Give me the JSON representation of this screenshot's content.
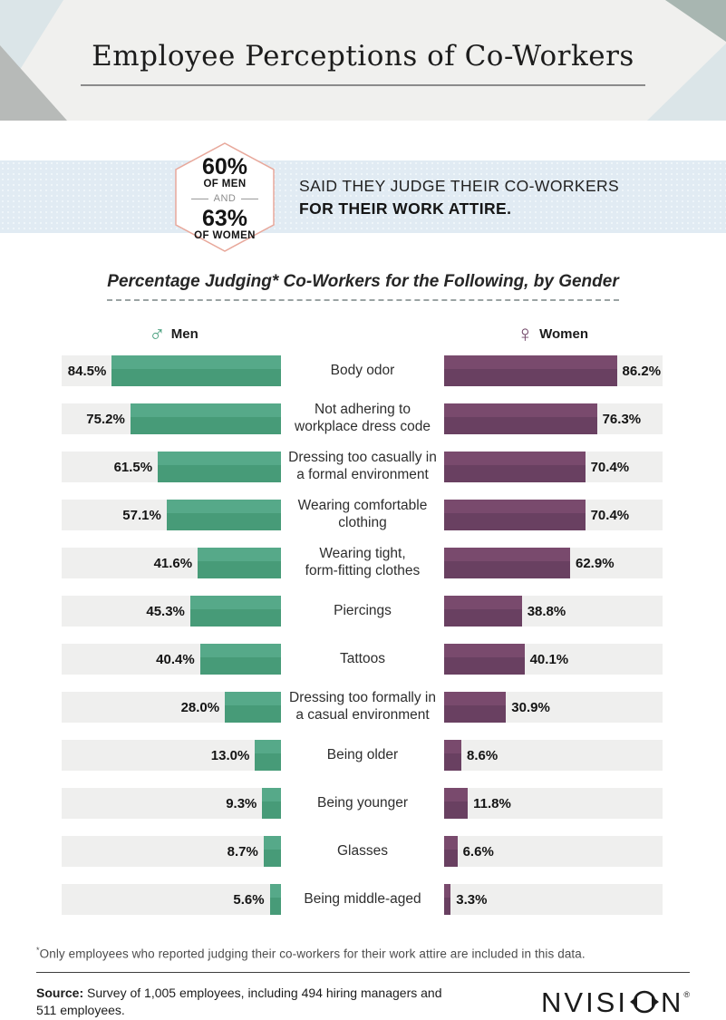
{
  "header": {
    "title": "Employee Perceptions of Co-Workers"
  },
  "banner": {
    "stat1_value": "60%",
    "stat1_label": "OF MEN",
    "connector": "AND",
    "stat2_value": "63%",
    "stat2_label": "OF WOMEN",
    "line1": "SAID THEY JUDGE THEIR CO-WORKERS",
    "line2": "FOR THEIR WORK ATTIRE."
  },
  "chart": {
    "title": "Percentage Judging* Co-Workers for the Following, by Gender",
    "legend": {
      "men_symbol": "♂",
      "men_label": "Men",
      "women_symbol": "♀",
      "women_label": "Women"
    },
    "colors": {
      "men": "#4aa07f",
      "women": "#704567",
      "track": "#efefee"
    }
  },
  "chart_data": {
    "type": "bar",
    "orientation": "horizontal-bilateral",
    "title": "Percentage Judging* Co-Workers for the Following, by Gender",
    "categories": [
      "Body odor",
      "Not adhering to\nworkplace dress code",
      "Dressing too casually in\na formal environment",
      "Wearing comfortable\nclothing",
      "Wearing tight,\nform-fitting clothes",
      "Piercings",
      "Tattoos",
      "Dressing too formally in\na casual environment",
      "Being older",
      "Being younger",
      "Glasses",
      "Being middle-aged"
    ],
    "series": [
      {
        "name": "Men",
        "values": [
          84.5,
          75.2,
          61.5,
          57.1,
          41.6,
          45.3,
          40.4,
          28.0,
          13.0,
          9.3,
          8.7,
          5.6
        ]
      },
      {
        "name": "Women",
        "values": [
          86.2,
          76.3,
          70.4,
          70.4,
          62.9,
          38.8,
          40.1,
          30.9,
          8.6,
          11.8,
          6.6,
          3.3
        ]
      }
    ],
    "value_unit": "%",
    "value_range": [
      0,
      100
    ],
    "legend_position": "top",
    "grid": false
  },
  "footer": {
    "footnote_mark": "*",
    "footnote": "Only employees who reported judging their co-workers for their work attire are included in this data.",
    "source_label": "Source:",
    "source_text": " Survey of 1,005 employees, including 494 hiring managers and 511 employees.",
    "logo_left": "NVISI",
    "logo_right": "N",
    "logo_reg": "®"
  }
}
